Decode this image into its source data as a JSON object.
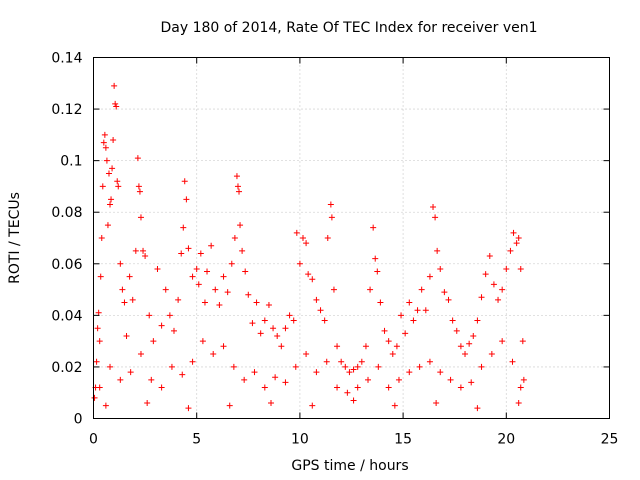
{
  "chart_data": {
    "type": "scatter",
    "title": "Day 180 of 2014, Rate Of TEC Index for receiver ven1",
    "xlabel": "GPS time / hours",
    "ylabel": "ROTI / TECUs",
    "xlim": [
      0,
      25
    ],
    "ylim": [
      0,
      0.14
    ],
    "xticks": [
      0,
      5,
      10,
      15,
      20,
      25
    ],
    "xtick_labels": [
      "0",
      "5",
      "10",
      "15",
      "20",
      "25"
    ],
    "yticks": [
      0,
      0.02,
      0.04,
      0.06,
      0.08,
      0.1,
      0.12,
      0.14
    ],
    "ytick_labels": [
      "0",
      "0.02",
      "0.04",
      "0.06",
      "0.08",
      "0.1",
      "0.12",
      "0.14"
    ],
    "grid": true,
    "marker": "+",
    "color": "#ff0000",
    "series": [
      {
        "name": "ROTI",
        "points": [
          [
            0.05,
            0.008
          ],
          [
            0.1,
            0.012
          ],
          [
            0.15,
            0.022
          ],
          [
            0.2,
            0.035
          ],
          [
            0.25,
            0.041
          ],
          [
            0.3,
            0.03
          ],
          [
            0.35,
            0.055
          ],
          [
            0.4,
            0.07
          ],
          [
            0.45,
            0.09
          ],
          [
            0.5,
            0.107
          ],
          [
            0.55,
            0.11
          ],
          [
            0.6,
            0.105
          ],
          [
            0.65,
            0.1
          ],
          [
            0.7,
            0.075
          ],
          [
            0.75,
            0.095
          ],
          [
            0.8,
            0.083
          ],
          [
            0.85,
            0.085
          ],
          [
            0.9,
            0.097
          ],
          [
            0.95,
            0.108
          ],
          [
            1.0,
            0.129
          ],
          [
            1.05,
            0.122
          ],
          [
            1.1,
            0.121
          ],
          [
            1.15,
            0.092
          ],
          [
            1.2,
            0.09
          ],
          [
            1.3,
            0.06
          ],
          [
            1.4,
            0.05
          ],
          [
            1.5,
            0.045
          ],
          [
            1.6,
            0.032
          ],
          [
            1.75,
            0.055
          ],
          [
            1.9,
            0.046
          ],
          [
            2.05,
            0.065
          ],
          [
            2.15,
            0.101
          ],
          [
            2.2,
            0.09
          ],
          [
            2.25,
            0.088
          ],
          [
            2.3,
            0.078
          ],
          [
            2.4,
            0.065
          ],
          [
            2.5,
            0.063
          ],
          [
            2.7,
            0.04
          ],
          [
            2.9,
            0.03
          ],
          [
            3.1,
            0.058
          ],
          [
            3.3,
            0.036
          ],
          [
            3.5,
            0.05
          ],
          [
            3.7,
            0.04
          ],
          [
            3.9,
            0.034
          ],
          [
            4.1,
            0.046
          ],
          [
            4.25,
            0.064
          ],
          [
            4.35,
            0.074
          ],
          [
            4.42,
            0.092
          ],
          [
            4.5,
            0.085
          ],
          [
            4.6,
            0.066
          ],
          [
            4.8,
            0.055
          ],
          [
            5.0,
            0.058
          ],
          [
            5.1,
            0.052
          ],
          [
            5.2,
            0.064
          ],
          [
            5.4,
            0.045
          ],
          [
            5.5,
            0.057
          ],
          [
            5.7,
            0.067
          ],
          [
            5.9,
            0.05
          ],
          [
            6.1,
            0.044
          ],
          [
            6.3,
            0.055
          ],
          [
            6.5,
            0.049
          ],
          [
            6.7,
            0.06
          ],
          [
            6.85,
            0.07
          ],
          [
            6.95,
            0.094
          ],
          [
            7.0,
            0.09
          ],
          [
            7.05,
            0.088
          ],
          [
            7.1,
            0.075
          ],
          [
            7.2,
            0.065
          ],
          [
            7.35,
            0.057
          ],
          [
            7.5,
            0.048
          ],
          [
            7.7,
            0.037
          ],
          [
            7.9,
            0.045
          ],
          [
            8.1,
            0.033
          ],
          [
            8.3,
            0.038
          ],
          [
            8.5,
            0.044
          ],
          [
            8.7,
            0.035
          ],
          [
            8.9,
            0.032
          ],
          [
            9.1,
            0.028
          ],
          [
            9.3,
            0.035
          ],
          [
            9.5,
            0.04
          ],
          [
            9.7,
            0.038
          ],
          [
            9.85,
            0.072
          ],
          [
            10.0,
            0.06
          ],
          [
            10.15,
            0.07
          ],
          [
            10.3,
            0.068
          ],
          [
            10.4,
            0.056
          ],
          [
            10.6,
            0.054
          ],
          [
            10.8,
            0.046
          ],
          [
            11.0,
            0.042
          ],
          [
            11.2,
            0.038
          ],
          [
            11.35,
            0.07
          ],
          [
            11.5,
            0.083
          ],
          [
            11.55,
            0.078
          ],
          [
            11.65,
            0.05
          ],
          [
            11.8,
            0.028
          ],
          [
            12.0,
            0.022
          ],
          [
            12.2,
            0.02
          ],
          [
            12.4,
            0.018
          ],
          [
            12.6,
            0.019
          ],
          [
            12.8,
            0.02
          ],
          [
            13.0,
            0.022
          ],
          [
            13.2,
            0.028
          ],
          [
            13.4,
            0.05
          ],
          [
            13.55,
            0.074
          ],
          [
            13.65,
            0.062
          ],
          [
            13.75,
            0.057
          ],
          [
            13.9,
            0.045
          ],
          [
            14.1,
            0.034
          ],
          [
            14.3,
            0.03
          ],
          [
            14.5,
            0.025
          ],
          [
            14.7,
            0.028
          ],
          [
            14.9,
            0.04
          ],
          [
            15.1,
            0.033
          ],
          [
            15.3,
            0.045
          ],
          [
            15.5,
            0.038
          ],
          [
            15.7,
            0.042
          ],
          [
            15.9,
            0.05
          ],
          [
            16.1,
            0.042
          ],
          [
            16.3,
            0.055
          ],
          [
            16.45,
            0.082
          ],
          [
            16.55,
            0.078
          ],
          [
            16.65,
            0.065
          ],
          [
            16.8,
            0.058
          ],
          [
            17.0,
            0.049
          ],
          [
            17.2,
            0.046
          ],
          [
            17.4,
            0.038
          ],
          [
            17.6,
            0.034
          ],
          [
            17.8,
            0.028
          ],
          [
            18.0,
            0.025
          ],
          [
            18.2,
            0.029
          ],
          [
            18.4,
            0.032
          ],
          [
            18.6,
            0.038
          ],
          [
            18.8,
            0.047
          ],
          [
            19.0,
            0.056
          ],
          [
            19.2,
            0.063
          ],
          [
            19.4,
            0.052
          ],
          [
            19.6,
            0.046
          ],
          [
            19.8,
            0.05
          ],
          [
            20.0,
            0.058
          ],
          [
            20.2,
            0.065
          ],
          [
            20.35,
            0.072
          ],
          [
            20.5,
            0.068
          ],
          [
            20.6,
            0.07
          ],
          [
            20.7,
            0.058
          ],
          [
            20.8,
            0.03
          ],
          [
            20.85,
            0.015
          ],
          [
            0.3,
            0.012
          ],
          [
            0.8,
            0.02
          ],
          [
            1.3,
            0.015
          ],
          [
            1.8,
            0.018
          ],
          [
            2.3,
            0.025
          ],
          [
            2.8,
            0.015
          ],
          [
            3.3,
            0.012
          ],
          [
            3.8,
            0.02
          ],
          [
            4.3,
            0.017
          ],
          [
            4.8,
            0.022
          ],
          [
            5.3,
            0.03
          ],
          [
            5.8,
            0.025
          ],
          [
            6.3,
            0.028
          ],
          [
            6.8,
            0.02
          ],
          [
            7.3,
            0.015
          ],
          [
            7.8,
            0.018
          ],
          [
            8.3,
            0.012
          ],
          [
            8.8,
            0.016
          ],
          [
            9.3,
            0.014
          ],
          [
            9.8,
            0.02
          ],
          [
            10.3,
            0.025
          ],
          [
            10.8,
            0.018
          ],
          [
            11.3,
            0.022
          ],
          [
            11.8,
            0.012
          ],
          [
            12.3,
            0.01
          ],
          [
            12.8,
            0.012
          ],
          [
            13.3,
            0.015
          ],
          [
            13.8,
            0.02
          ],
          [
            14.3,
            0.012
          ],
          [
            14.8,
            0.015
          ],
          [
            15.3,
            0.018
          ],
          [
            15.8,
            0.02
          ],
          [
            16.3,
            0.022
          ],
          [
            16.8,
            0.018
          ],
          [
            17.3,
            0.015
          ],
          [
            17.8,
            0.012
          ],
          [
            18.3,
            0.014
          ],
          [
            18.8,
            0.02
          ],
          [
            19.3,
            0.025
          ],
          [
            19.8,
            0.03
          ],
          [
            20.3,
            0.022
          ],
          [
            20.7,
            0.012
          ],
          [
            0.6,
            0.005
          ],
          [
            2.6,
            0.006
          ],
          [
            4.6,
            0.004
          ],
          [
            6.6,
            0.005
          ],
          [
            8.6,
            0.006
          ],
          [
            10.6,
            0.005
          ],
          [
            12.6,
            0.007
          ],
          [
            14.6,
            0.005
          ],
          [
            16.6,
            0.006
          ],
          [
            18.6,
            0.004
          ],
          [
            20.6,
            0.006
          ]
        ]
      }
    ]
  }
}
